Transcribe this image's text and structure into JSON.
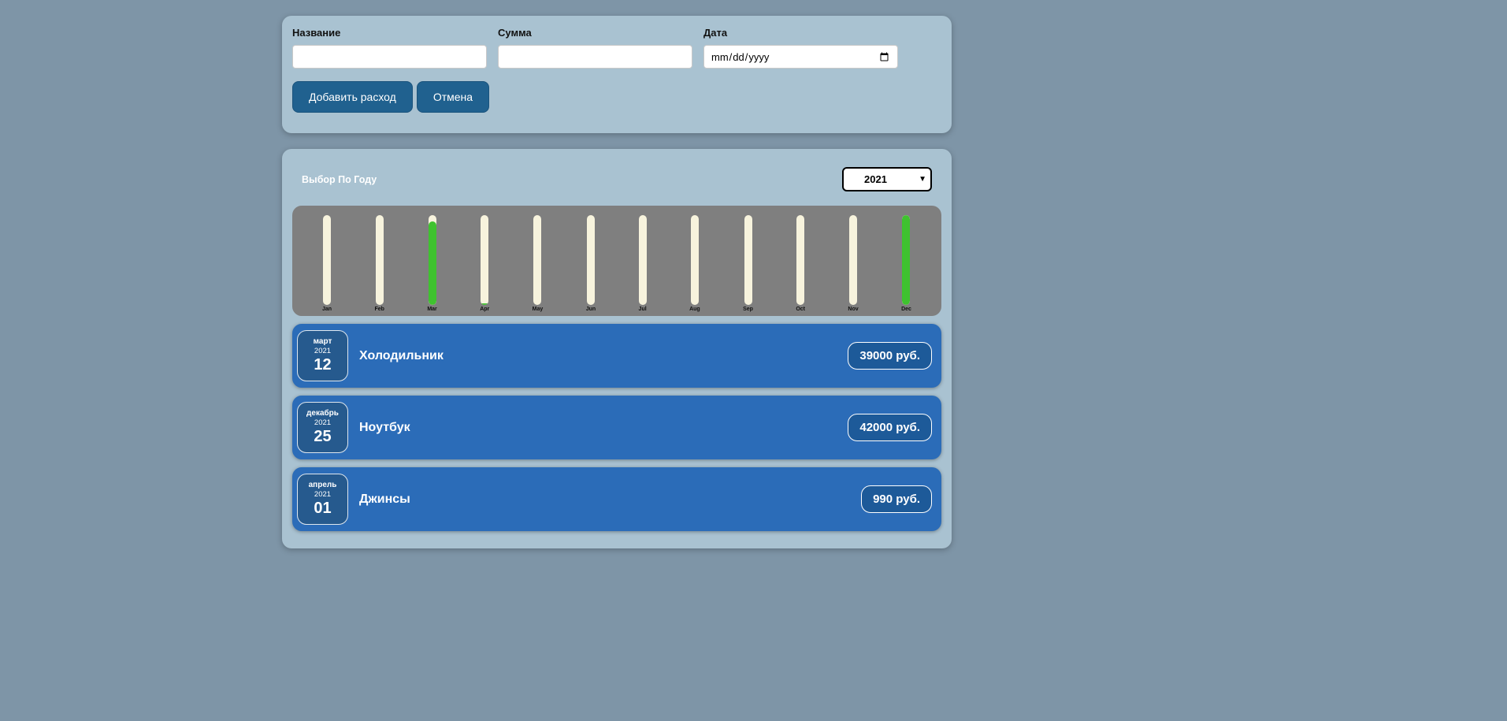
{
  "form": {
    "name_label": "Название",
    "amount_label": "Сумма",
    "date_label": "Дата",
    "name_value": "",
    "amount_value": "",
    "date_placeholder": "mm/dd/yyyy",
    "submit_label": "Добавить расход",
    "cancel_label": "Отмена"
  },
  "filter": {
    "label": "Выбор По Году",
    "selected_year": "2021"
  },
  "chart_data": {
    "type": "bar",
    "categories": [
      "Jan",
      "Feb",
      "Mar",
      "Apr",
      "May",
      "Jun",
      "Jul",
      "Aug",
      "Sep",
      "Oct",
      "Nov",
      "Dec"
    ],
    "values": [
      0,
      0,
      39000,
      990,
      0,
      0,
      0,
      0,
      0,
      0,
      0,
      42000
    ],
    "title": "",
    "xlabel": "",
    "ylabel": "",
    "ylim": [
      0,
      42000
    ],
    "legend": "none",
    "bar_fill_color": "#3fc22f",
    "bar_track_color": "#f7f3dd",
    "chart_background": "#7f7f7f"
  },
  "expenses": [
    {
      "month": "март",
      "year": "2021",
      "day": "12",
      "title": "Холодильник",
      "amount": "39000 руб."
    },
    {
      "month": "декабрь",
      "year": "2021",
      "day": "25",
      "title": "Ноутбук",
      "amount": "42000 руб."
    },
    {
      "month": "апрель",
      "year": "2021",
      "day": "01",
      "title": "Джинсы",
      "amount": "990 руб."
    }
  ],
  "colors": {
    "page_background": "#7e95a7",
    "card_background": "#a9c2d1",
    "button_background": "#20618f",
    "expense_item_background": "#2b6cb8",
    "date_badge_background": "#265a8e",
    "price_badge_background": "#1d5a99"
  }
}
